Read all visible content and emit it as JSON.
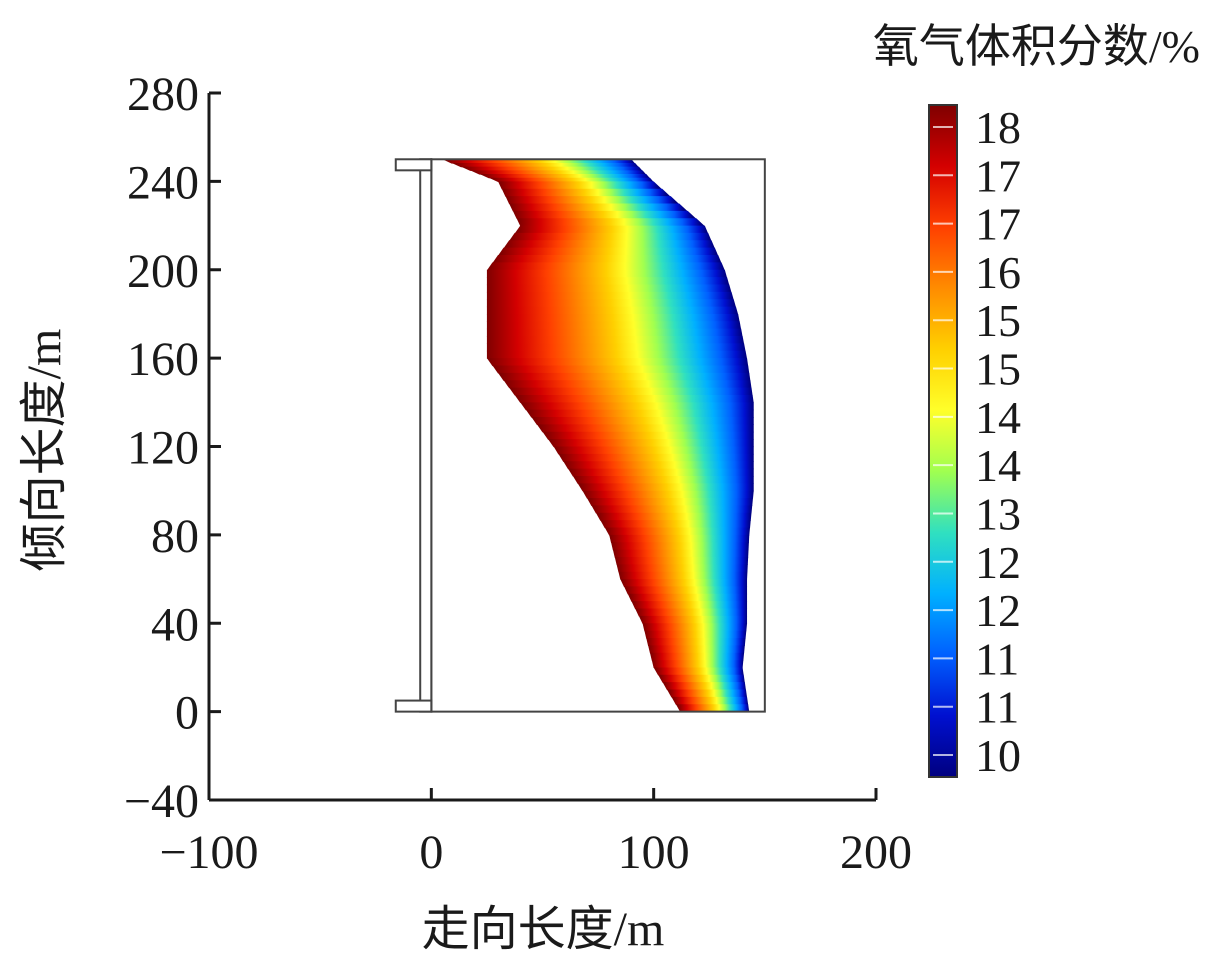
{
  "chart_data": {
    "type": "heatmap",
    "title": "",
    "xlabel": "走向长度/m",
    "ylabel": "倾向长度/m",
    "xlim": [
      -100,
      200
    ],
    "ylim": [
      -40,
      280
    ],
    "x_ticks": [
      "-100",
      "0",
      "100",
      "200"
    ],
    "y_ticks": [
      "280",
      "240",
      "200",
      "160",
      "120",
      "80",
      "40",
      "0",
      "-40"
    ],
    "x_tick_values": [
      -100,
      0,
      100,
      200
    ],
    "y_tick_values": [
      280,
      240,
      200,
      160,
      120,
      80,
      40,
      0,
      -40
    ],
    "goaf_region": {
      "x": [
        0,
        150
      ],
      "y": [
        0,
        250
      ]
    },
    "support_columns": {
      "x": [
        -16,
        0
      ],
      "y": [
        0,
        250
      ]
    },
    "oxygen_field": {
      "y": [
        250,
        240,
        220,
        200,
        180,
        160,
        140,
        120,
        100,
        80,
        60,
        40,
        20,
        0
      ],
      "left_edge_x": [
        5,
        30,
        40,
        25,
        25,
        25,
        40,
        55,
        68,
        80,
        85,
        95,
        100,
        112
      ],
      "right_edge_x": [
        90,
        100,
        123,
        132,
        138,
        142,
        145,
        145,
        145,
        143,
        142,
        142,
        140,
        143
      ],
      "value_at_left": 18,
      "value_at_right": 10
    },
    "colorbar": {
      "title": "氧气体积分数/%",
      "tick_labels": [
        "18",
        "17",
        "17",
        "16",
        "15",
        "15",
        "14",
        "14",
        "13",
        "12",
        "12",
        "11",
        "11",
        "10"
      ],
      "min": 10,
      "max": 18,
      "colormap": [
        "#7f0000",
        "#d40000",
        "#ff4000",
        "#ff8c00",
        "#ffd000",
        "#ffff2a",
        "#a0ff50",
        "#30e0c0",
        "#00b0ff",
        "#0060ff",
        "#0010d0",
        "#00007f"
      ]
    }
  }
}
